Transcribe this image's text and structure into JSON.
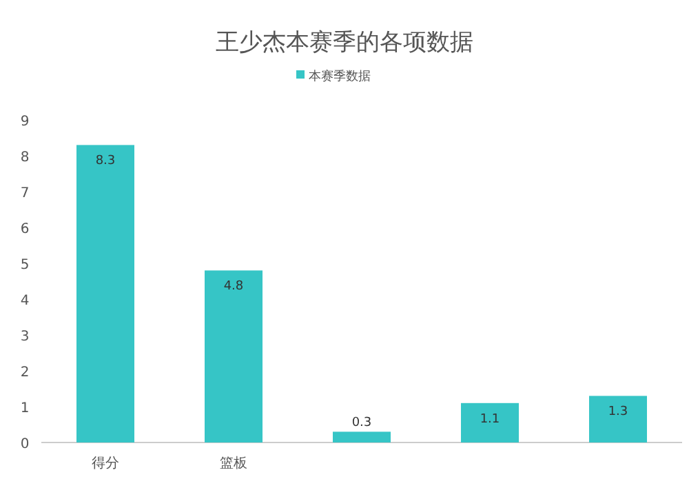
{
  "chart_data": {
    "type": "bar",
    "title": "王少杰本赛季的各项数据",
    "categories": [
      "得分",
      "篮板",
      null,
      null,
      null
    ],
    "series": [
      {
        "name": "本赛季数据",
        "color": "#36c5c6",
        "values": [
          8.3,
          4.8,
          0.3,
          1.1,
          1.3
        ]
      }
    ],
    "ylim": [
      0,
      9
    ],
    "yticks": [
      0,
      1,
      2,
      3,
      4,
      5,
      6,
      7,
      8,
      9
    ],
    "data_labels": true,
    "legend": "top",
    "grid": false
  }
}
